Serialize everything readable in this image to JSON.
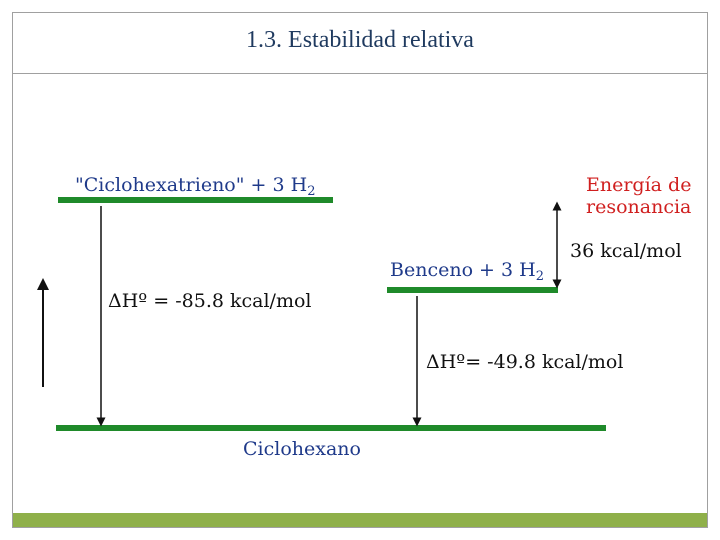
{
  "slide": {
    "title": "1.3. Estabilidad relativa"
  },
  "diagram": {
    "level_top_label": "\"Ciclohexatrieno\" + 3 H",
    "level_top_sub": "2",
    "level_mid_label": "Benceno + 3 H",
    "level_mid_sub": "2",
    "level_bottom_label": "Ciclohexano",
    "resonance_line1": "Energía de",
    "resonance_line2": "resonancia",
    "resonance_value": "36 kcal/mol",
    "dh_top": "ΔHº = -85.8 kcal/mol",
    "dh_mid": "ΔHº= -49.8 kcal/mol",
    "colors": {
      "level_line": "#1f8a2a",
      "label_blue": "#1f3a8a",
      "resonance_red": "#d01f1f",
      "text_black": "#111111",
      "footer": "#8fb04a"
    }
  }
}
